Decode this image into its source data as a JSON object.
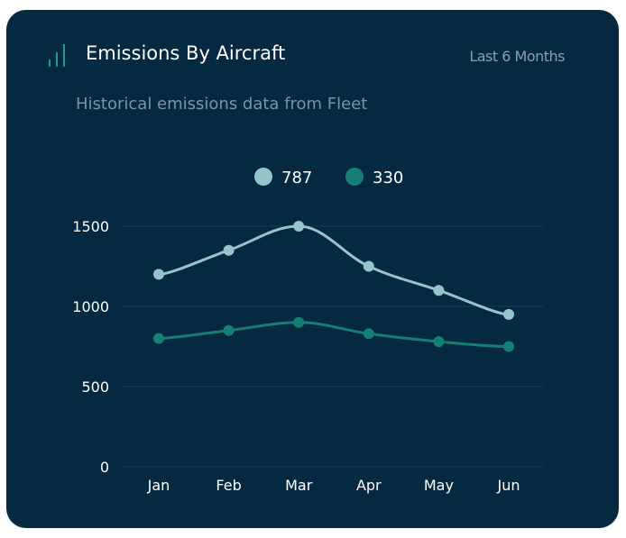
{
  "header": {
    "title": "Emissions By Aircraft",
    "period": "Last 6 Months",
    "subtitle": "Historical emissions data from Fleet"
  },
  "icons": {
    "header_icon": "bar-chart-icon"
  },
  "colors": {
    "card_bg": "#052940",
    "grid": "#1b3d52",
    "series_787": "#93c5cb",
    "series_330": "#147f72",
    "icon": "#1f9b89"
  },
  "chart_data": {
    "type": "line",
    "categories": [
      "Jan",
      "Feb",
      "Mar",
      "Apr",
      "May",
      "Jun"
    ],
    "series": [
      {
        "name": "787",
        "values": [
          1200,
          1350,
          1500,
          1250,
          1100,
          950
        ],
        "color": "#93c5cb"
      },
      {
        "name": "330",
        "values": [
          800,
          850,
          900,
          830,
          780,
          750
        ],
        "color": "#147f72"
      }
    ],
    "yticks": [
      0,
      500,
      1000,
      1500
    ],
    "ylim": [
      0,
      1500
    ],
    "grid": true,
    "legend": "top-center",
    "smooth": true
  }
}
